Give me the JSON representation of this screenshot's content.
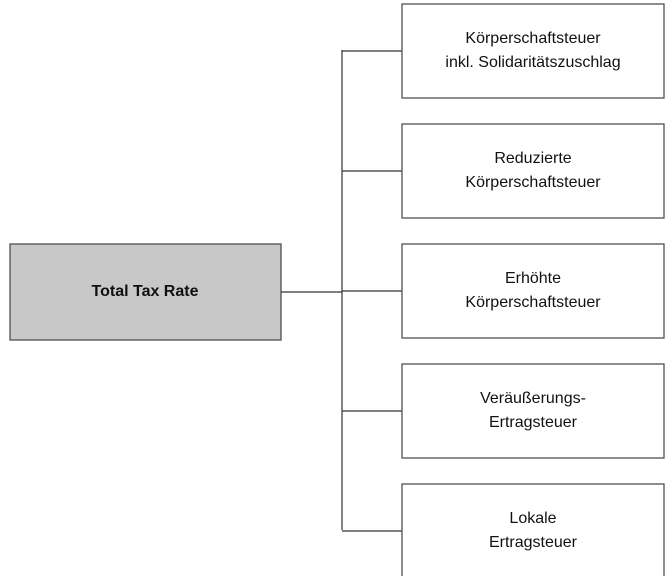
{
  "root": {
    "label": "Total Tax Rate"
  },
  "nodes": [
    {
      "lines": [
        "Körperschaftsteuer",
        "inkl. Solidaritätszuschlag"
      ]
    },
    {
      "lines": [
        "Reduzierte",
        "Körperschaftsteuer"
      ]
    },
    {
      "lines": [
        "Erhöhte",
        "Körperschaftsteuer"
      ]
    },
    {
      "lines": [
        "Veräußerungs-",
        "Ertragsteuer"
      ]
    },
    {
      "lines": [
        "Lokale",
        "Ertragsteuer"
      ]
    }
  ]
}
